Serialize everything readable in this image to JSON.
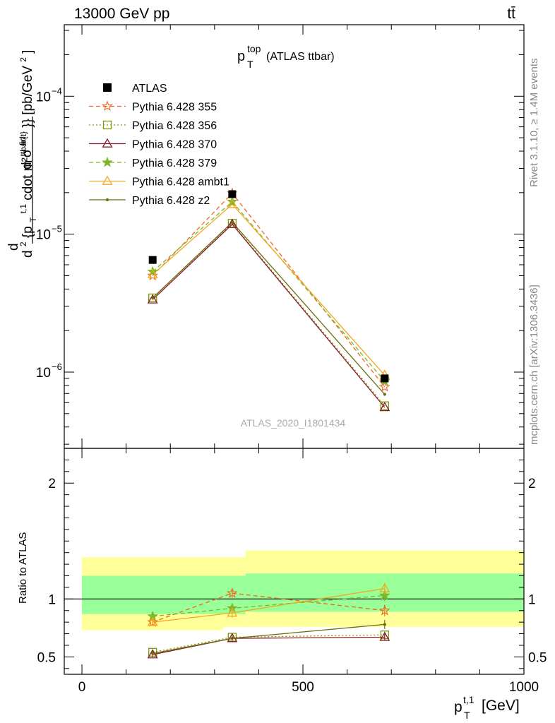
{
  "header": {
    "left": "13000 GeV pp",
    "right": "tt̄"
  },
  "side_labels": {
    "rivet": "Rivet 3.1.10, ≥ 1.4M events",
    "mcplots": "mcplots.cern.ch [arXiv:1306.3436]"
  },
  "chart_data": [
    {
      "type": "line",
      "title_main": "p",
      "title_sup": "top",
      "title_sub": "T",
      "title_rest": "(ATLAS ttbar)",
      "watermark": "ATLAS_2020_I1801434",
      "ylabel": "d²σ^{fid} / d²{p_T^{t,1} cdot m^{ttbar{t}}} [pb/GeV²]",
      "ylabel_parts": {
        "num": "d²σ",
        "num_sup": "fid",
        "den_a": "d",
        "den_sup2": "2",
        "den_b": " {p",
        "den_sub": "T",
        "den_sup": "t,1",
        "den_c": " cdot m",
        "den_sup3": "ttbar{t}",
        "den_d": "}} [pb/GeV",
        "den_sup4": "2",
        "den_e": "]"
      },
      "y_scale": "log",
      "ylim": [
        2.8e-07,
        0.00033
      ],
      "xlim": [
        -40,
        1000
      ],
      "y_ticks": [
        {
          "value": 1e-06,
          "base": "10",
          "exp": "−6"
        },
        {
          "value": 1e-05,
          "base": "10",
          "exp": "−5"
        },
        {
          "value": 0.0001,
          "base": "10",
          "exp": "−4"
        }
      ],
      "legend_position": "top-left",
      "data": {
        "name": "ATLAS",
        "x": [
          160,
          340,
          685
        ],
        "y": [
          6.5e-06,
          1.95e-05,
          9e-07
        ],
        "color": "#000000"
      },
      "series": [
        {
          "name": "Pythia 6.428 355",
          "marker": "star-open",
          "dash": "6,4",
          "color": "#f26522",
          "x": [
            160,
            340,
            685
          ],
          "y": [
            5e-06,
            1.98e-05,
            7.8e-07
          ]
        },
        {
          "name": "Pythia 6.428 356",
          "marker": "square-open",
          "dash": "2,3",
          "color": "#7a9a0a",
          "x": [
            160,
            340,
            685
          ],
          "y": [
            3.45e-06,
            1.2e-05,
            5.7e-07
          ]
        },
        {
          "name": "Pythia 6.428 370",
          "marker": "triangle-open",
          "dash": "",
          "color": "#8b1a2b",
          "x": [
            160,
            340,
            685
          ],
          "y": [
            3.35e-06,
            1.18e-05,
            5.55e-07
          ]
        },
        {
          "name": "Pythia 6.428 379",
          "marker": "star-filled",
          "dash": "6,4",
          "color": "#7ab82a",
          "x": [
            160,
            340,
            685
          ],
          "y": [
            5.35e-06,
            1.72e-05,
            8.6e-07
          ]
        },
        {
          "name": "Pythia 6.428 ambt1",
          "marker": "triangle-open",
          "dash": "",
          "color": "#f2a81f",
          "x": [
            160,
            340,
            685
          ],
          "y": [
            5.1e-06,
            1.65e-05,
            9.5e-07
          ]
        },
        {
          "name": "Pythia 6.428 z2",
          "marker": "dot",
          "dash": "",
          "color": "#6b6b10",
          "x": [
            160,
            340,
            685
          ],
          "y": [
            3.45e-06,
            1.22e-05,
            6.9e-07
          ]
        }
      ]
    },
    {
      "type": "line",
      "ylabel": "Ratio to ATLAS",
      "xlabel_main": "p",
      "xlabel_sub": "T",
      "xlabel_sup": "t,1",
      "xlabel_rest": "[GeV]",
      "xlim": [
        -40,
        1000
      ],
      "ylim": [
        0.35,
        2.3
      ],
      "x_ticks": [
        0,
        500,
        1000
      ],
      "x_tick_labels": [
        "0",
        "500",
        "1000"
      ],
      "y_ticks": [
        0.5,
        1,
        2
      ],
      "y_tick_labels": [
        "0.5",
        "1",
        "2"
      ],
      "bands": [
        {
          "x0": 0,
          "x1": 320,
          "yellow": [
            0.73,
            1.36
          ],
          "green": [
            0.87,
            1.2
          ]
        },
        {
          "x0": 320,
          "x1": 370,
          "yellow": [
            0.76,
            1.36
          ],
          "green": [
            0.87,
            1.2
          ]
        },
        {
          "x0": 370,
          "x1": 1000,
          "yellow": [
            0.76,
            1.42
          ],
          "green": [
            0.89,
            1.22
          ]
        }
      ],
      "series": [
        {
          "name": "Pythia 6.428 355",
          "x": [
            160,
            340,
            685
          ],
          "y": [
            0.8,
            1.05,
            0.9
          ],
          "err": [
            0.03,
            0.04,
            0.05
          ]
        },
        {
          "name": "Pythia 6.428 356",
          "x": [
            160,
            340,
            685
          ],
          "y": [
            0.54,
            0.67,
            0.69
          ],
          "err": [
            0.02,
            0.02,
            0.03
          ]
        },
        {
          "name": "Pythia 6.428 370",
          "x": [
            160,
            340,
            685
          ],
          "y": [
            0.52,
            0.66,
            0.67
          ],
          "err": [
            0.02,
            0.02,
            0.03
          ]
        },
        {
          "name": "Pythia 6.428 379",
          "x": [
            160,
            340,
            685
          ],
          "y": [
            0.85,
            0.92,
            1.03
          ],
          "err": [
            0.03,
            0.04,
            0.05
          ]
        },
        {
          "name": "Pythia 6.428 ambt1",
          "x": [
            160,
            340,
            685
          ],
          "y": [
            0.8,
            0.88,
            1.09
          ],
          "err": [
            0.03,
            0.04,
            0.05
          ]
        },
        {
          "name": "Pythia 6.428 z2",
          "x": [
            160,
            340,
            685
          ],
          "y": [
            0.53,
            0.66,
            0.78
          ],
          "err": [
            0.02,
            0.02,
            0.04
          ]
        }
      ]
    }
  ]
}
